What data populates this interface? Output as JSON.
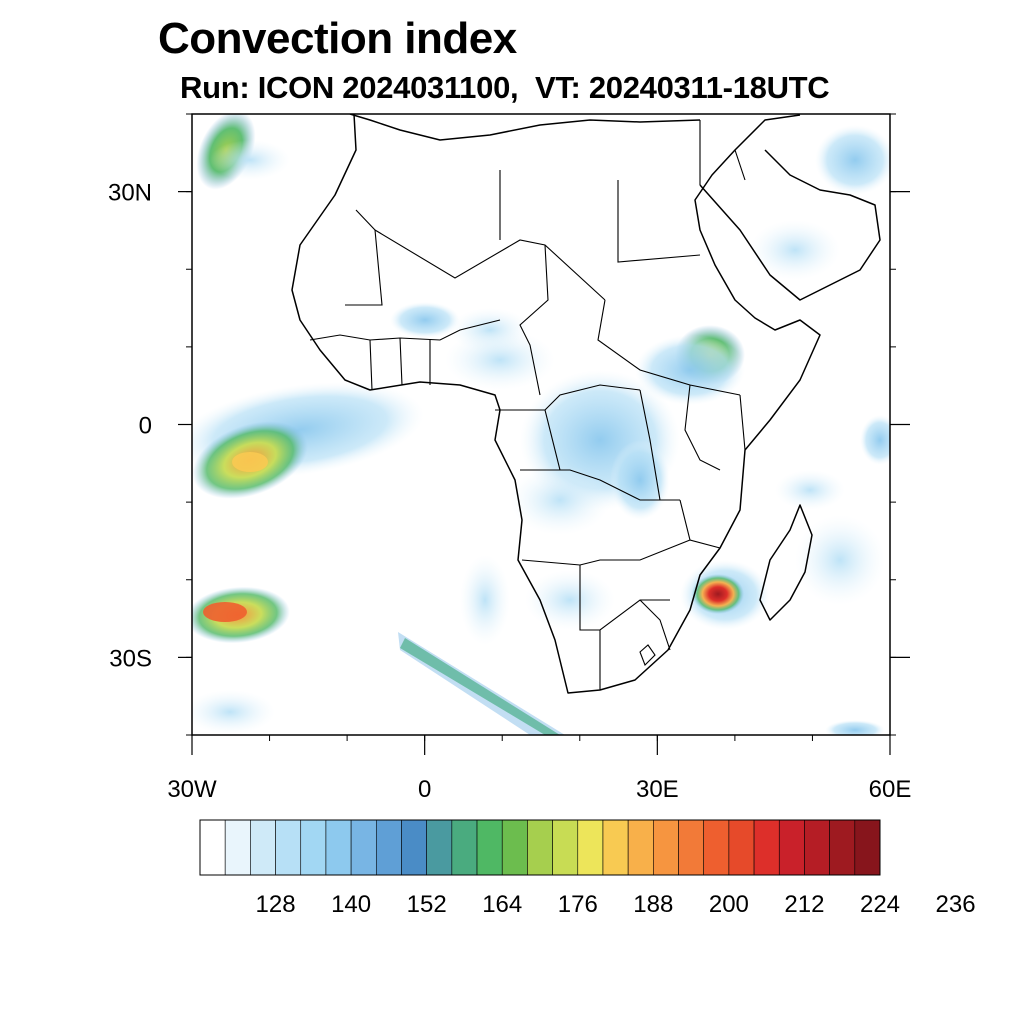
{
  "title": "Convection index",
  "subtitle": "Run: ICON 2024031100,  VT: 20240311-18UTC",
  "map": {
    "extent": {
      "lon_min": -30,
      "lon_max": 60,
      "lat_min": -40,
      "lat_max": 40
    },
    "y_ticks": [
      {
        "lat": 30,
        "label": "30N"
      },
      {
        "lat": 0,
        "label": "0"
      },
      {
        "lat": -30,
        "label": "30S"
      }
    ],
    "x_ticks": [
      {
        "lon": -30,
        "label": "30W"
      },
      {
        "lon": 0,
        "label": "0"
      },
      {
        "lon": 30,
        "label": "30E"
      },
      {
        "lon": 60,
        "label": "60E"
      }
    ]
  },
  "colorbar": {
    "colors": [
      "#ffffff",
      "#e9f5fc",
      "#cfeaf8",
      "#b7e0f6",
      "#a2d7f3",
      "#8dc9ee",
      "#78b5e4",
      "#5f9fd6",
      "#4a8cc6",
      "#4a9aa0",
      "#4aab7f",
      "#4fb864",
      "#6cbd4e",
      "#a6cf4e",
      "#c8dc54",
      "#ede55a",
      "#f8ca52",
      "#f8b04a",
      "#f69540",
      "#f27a38",
      "#ee5f2f",
      "#e64a2a",
      "#dd2f2a",
      "#c9212a",
      "#b51d25",
      "#9e1a20",
      "#87151c"
    ],
    "labels": [
      "128",
      "140",
      "152",
      "164",
      "176",
      "188",
      "200",
      "212",
      "224",
      "236"
    ]
  }
}
